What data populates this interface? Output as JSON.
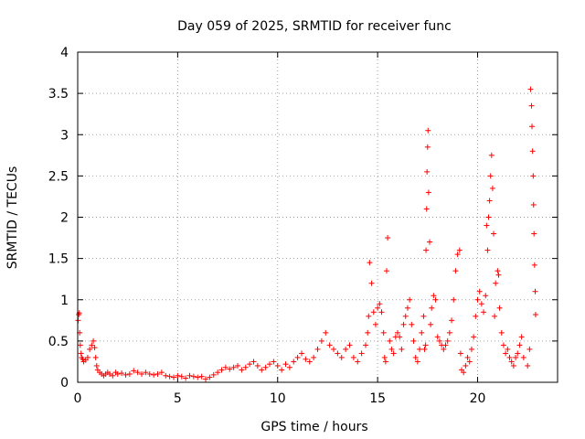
{
  "chart_data": {
    "type": "scatter",
    "title": "Day 059 of 2025, SRMTID for receiver func",
    "xlabel": "GPS time / hours",
    "ylabel": "SRMTID / TECUs",
    "xlim": [
      0,
      24
    ],
    "ylim": [
      0,
      4
    ],
    "xticks": [
      0,
      5,
      10,
      15,
      20
    ],
    "xtick_labels": [
      "0",
      "5",
      "10",
      "15",
      "20"
    ],
    "yticks": [
      0,
      0.5,
      1,
      1.5,
      2,
      2.5,
      3,
      3.5,
      4
    ],
    "ytick_labels": [
      "0",
      "0.5",
      "1",
      "1.5",
      "2",
      "2.5",
      "3",
      "3.5",
      "4"
    ],
    "grid": true,
    "marker": "+",
    "color": "#ff0000",
    "series": [
      {
        "name": "SRMTID",
        "x": [
          0.02,
          0.05,
          0.08,
          0.1,
          0.13,
          0.17,
          0.2,
          0.25,
          0.3,
          0.4,
          0.5,
          0.6,
          0.7,
          0.78,
          0.85,
          0.9,
          0.95,
          1.0,
          1.1,
          1.2,
          1.3,
          1.4,
          1.5,
          1.6,
          1.75,
          1.9,
          2.0,
          2.2,
          2.4,
          2.6,
          2.8,
          3.0,
          3.2,
          3.4,
          3.6,
          3.8,
          4.0,
          4.2,
          4.4,
          4.6,
          4.8,
          5.0,
          5.2,
          5.4,
          5.6,
          5.8,
          6.0,
          6.2,
          6.4,
          6.6,
          6.8,
          7.0,
          7.2,
          7.4,
          7.6,
          7.8,
          8.0,
          8.2,
          8.4,
          8.6,
          8.8,
          9.0,
          9.2,
          9.4,
          9.6,
          9.8,
          10.0,
          10.2,
          10.4,
          10.6,
          10.8,
          11.0,
          11.2,
          11.4,
          11.6,
          11.8,
          12.0,
          12.2,
          12.4,
          12.6,
          12.8,
          13.0,
          13.2,
          13.4,
          13.6,
          13.8,
          14.0,
          14.2,
          14.4,
          14.5,
          14.55,
          14.6,
          14.7,
          14.8,
          14.9,
          15.0,
          15.1,
          15.2,
          15.3,
          15.35,
          15.4,
          15.45,
          15.5,
          15.6,
          15.7,
          15.8,
          15.9,
          16.0,
          16.1,
          16.2,
          16.3,
          16.4,
          16.5,
          16.6,
          16.7,
          16.8,
          16.9,
          17.0,
          17.1,
          17.2,
          17.3,
          17.35,
          17.4,
          17.42,
          17.45,
          17.47,
          17.5,
          17.52,
          17.55,
          17.6,
          17.65,
          17.7,
          17.8,
          17.9,
          18.0,
          18.1,
          18.2,
          18.3,
          18.4,
          18.5,
          18.6,
          18.7,
          18.8,
          18.9,
          19.0,
          19.1,
          19.15,
          19.2,
          19.3,
          19.4,
          19.5,
          19.6,
          19.7,
          19.8,
          19.9,
          20.0,
          20.1,
          20.2,
          20.3,
          20.4,
          20.45,
          20.5,
          20.55,
          20.6,
          20.65,
          20.7,
          20.75,
          20.8,
          20.85,
          20.9,
          21.0,
          21.05,
          21.1,
          21.2,
          21.3,
          21.4,
          21.5,
          21.6,
          21.7,
          21.8,
          21.9,
          22.0,
          22.1,
          22.2,
          22.3,
          22.5,
          22.6,
          22.65,
          22.7,
          22.72,
          22.75,
          22.78,
          22.8,
          22.82,
          22.85,
          22.88,
          22.9
        ],
        "y": [
          0.75,
          0.82,
          0.84,
          0.6,
          0.45,
          0.35,
          0.3,
          0.28,
          0.25,
          0.27,
          0.3,
          0.4,
          0.45,
          0.5,
          0.42,
          0.3,
          0.2,
          0.15,
          0.12,
          0.1,
          0.08,
          0.1,
          0.12,
          0.1,
          0.08,
          0.12,
          0.1,
          0.11,
          0.09,
          0.1,
          0.14,
          0.12,
          0.1,
          0.12,
          0.1,
          0.09,
          0.1,
          0.12,
          0.08,
          0.07,
          0.06,
          0.08,
          0.07,
          0.05,
          0.08,
          0.07,
          0.06,
          0.07,
          0.04,
          0.06,
          0.09,
          0.12,
          0.15,
          0.18,
          0.16,
          0.18,
          0.2,
          0.15,
          0.18,
          0.22,
          0.25,
          0.2,
          0.15,
          0.18,
          0.22,
          0.25,
          0.2,
          0.15,
          0.22,
          0.18,
          0.25,
          0.3,
          0.35,
          0.28,
          0.25,
          0.3,
          0.4,
          0.5,
          0.6,
          0.45,
          0.4,
          0.35,
          0.3,
          0.4,
          0.45,
          0.3,
          0.25,
          0.35,
          0.45,
          0.6,
          0.8,
          1.45,
          1.2,
          0.85,
          0.7,
          0.9,
          0.95,
          0.85,
          0.6,
          0.3,
          0.25,
          1.35,
          1.75,
          0.5,
          0.4,
          0.35,
          0.55,
          0.6,
          0.55,
          0.4,
          0.7,
          0.8,
          0.9,
          1.0,
          0.7,
          0.5,
          0.3,
          0.25,
          0.4,
          0.6,
          0.8,
          0.4,
          0.45,
          1.6,
          2.1,
          2.55,
          2.85,
          3.05,
          2.3,
          1.7,
          0.7,
          0.9,
          1.05,
          1.0,
          0.55,
          0.5,
          0.45,
          0.4,
          0.45,
          0.5,
          0.6,
          0.75,
          1.0,
          1.35,
          1.55,
          1.6,
          0.35,
          0.15,
          0.12,
          0.2,
          0.3,
          0.25,
          0.4,
          0.55,
          0.8,
          1.0,
          1.1,
          0.95,
          0.85,
          1.05,
          1.9,
          1.6,
          2.0,
          2.2,
          2.5,
          2.75,
          2.35,
          1.8,
          0.8,
          1.2,
          1.35,
          1.3,
          0.9,
          0.6,
          0.45,
          0.35,
          0.4,
          0.3,
          0.25,
          0.2,
          0.3,
          0.35,
          0.45,
          0.55,
          0.3,
          0.2,
          0.4,
          3.55,
          3.35,
          3.1,
          2.8,
          2.5,
          2.15,
          1.8,
          1.42,
          1.1,
          0.82
        ]
      }
    ]
  }
}
